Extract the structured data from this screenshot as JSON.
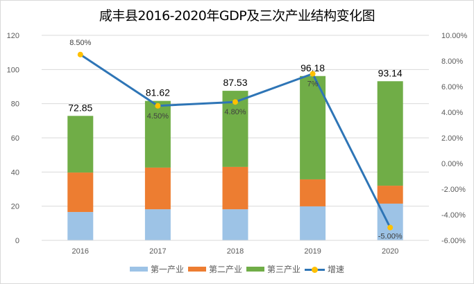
{
  "chart_data": {
    "type": "bar",
    "title": "咸丰县2016-2020年GDP及三次产业结构变化图",
    "categories": [
      "2016",
      "2017",
      "2018",
      "2019",
      "2020"
    ],
    "series": [
      {
        "name": "第一产业",
        "type": "stacked-bar",
        "color": "#9dc3e6",
        "values": [
          16.6,
          18.2,
          18.2,
          19.9,
          21.5
        ]
      },
      {
        "name": "第二产业",
        "type": "stacked-bar",
        "color": "#ed7d31",
        "values": [
          23.1,
          24.4,
          24.8,
          15.8,
          10.5
        ]
      },
      {
        "name": "第三产业",
        "type": "stacked-bar",
        "color": "#70ad47",
        "values": [
          33.15,
          39.02,
          44.53,
          60.48,
          61.14
        ]
      },
      {
        "name": "增速",
        "type": "line",
        "axis": "right",
        "color": "#2e75b6",
        "marker_color": "#ffc000",
        "values": [
          8.5,
          4.5,
          4.8,
          7.0,
          -5.0
        ]
      }
    ],
    "totals": [
      "72.85",
      "81.62",
      "87.53",
      "96.18",
      "93.14"
    ],
    "totals_values": [
      72.85,
      81.62,
      87.53,
      96.18,
      93.14
    ],
    "line_labels": [
      "8.50%",
      "4.50%",
      "4.80%",
      "7%",
      "-5.00%"
    ],
    "ylim": [
      0,
      120
    ],
    "yticks": [
      "0",
      "20",
      "40",
      "60",
      "80",
      "100",
      "120"
    ],
    "y2lim": [
      -6,
      10
    ],
    "y2ticks": [
      "-6.00%",
      "-4.00%",
      "-2.00%",
      "0.00%",
      "2.00%",
      "4.00%",
      "6.00%",
      "8.00%",
      "10.00%"
    ],
    "grid": true,
    "legend_position": "bottom",
    "legend": [
      "第一产业",
      "第二产业",
      "第三产业",
      "增速"
    ]
  }
}
